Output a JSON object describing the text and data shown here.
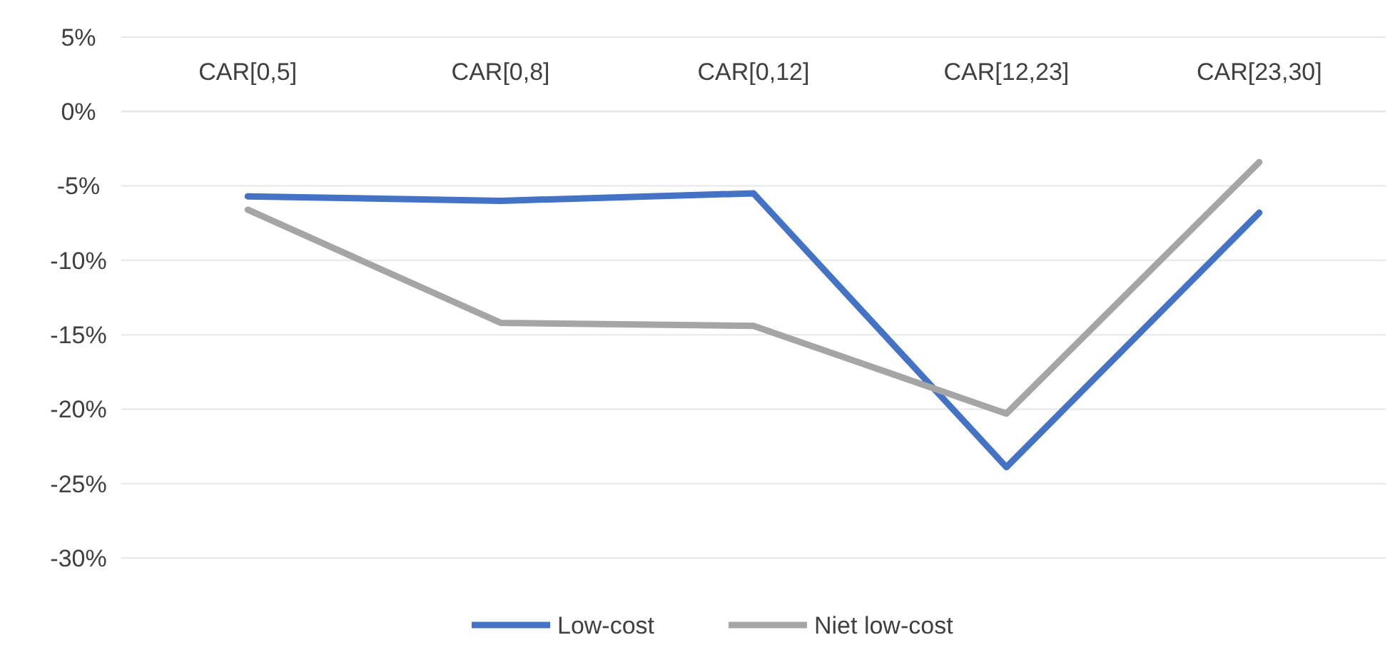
{
  "chart_data": {
    "type": "line",
    "categories": [
      "CAR[0,5]",
      "CAR[0,8]",
      "CAR[0,12]",
      "CAR[12,23]",
      "CAR[23,30]"
    ],
    "series": [
      {
        "name": "Low-cost",
        "color": "#4472c4",
        "values": [
          -5.7,
          -6.0,
          -5.5,
          -23.9,
          -6.8
        ]
      },
      {
        "name": "Niet low-cost",
        "color": "#a5a5a5",
        "values": [
          -6.6,
          -14.2,
          -14.4,
          -20.3,
          -3.4
        ]
      }
    ],
    "ylim": [
      -30,
      5
    ],
    "yticks": [
      {
        "value": -30,
        "label": "-30%"
      },
      {
        "value": -25,
        "label": "-25%"
      },
      {
        "value": -20,
        "label": "-20%"
      },
      {
        "value": -15,
        "label": "-15%"
      },
      {
        "value": -10,
        "label": "-10%"
      },
      {
        "value": -5,
        "label": "-5%"
      },
      {
        "value": 0,
        "label": "0%"
      },
      {
        "value": 5,
        "label": "5%"
      }
    ],
    "grid": "y",
    "legend": "bottom",
    "marker": "none",
    "line_style": "solid"
  }
}
